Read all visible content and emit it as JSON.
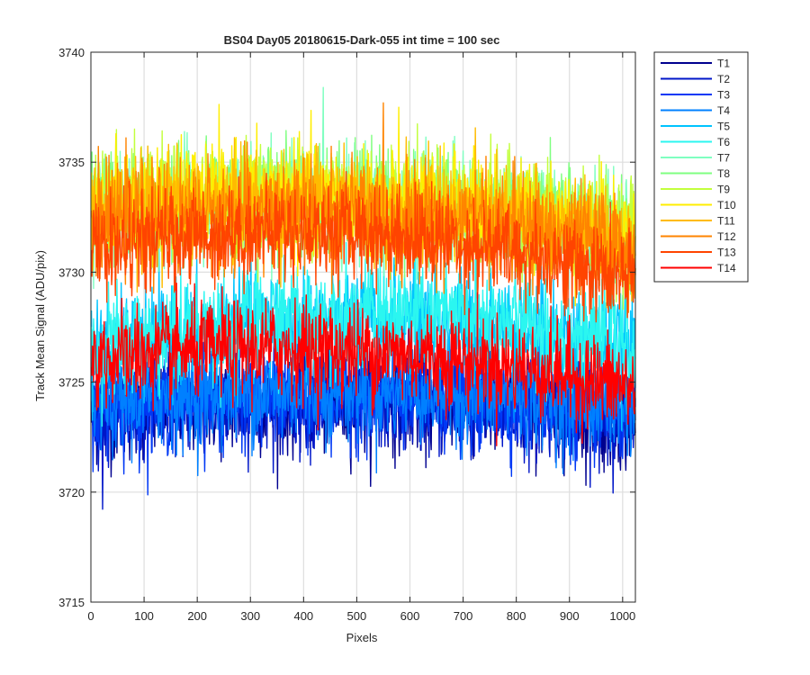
{
  "figure": {
    "background": "#ffffff",
    "axes_background": "#ffffff",
    "axis_color": "#262626",
    "grid_color": "#dedede"
  },
  "chart_data": {
    "type": "line",
    "title": "BS04 Day05 20180615-Dark-055 int time = 100 sec",
    "xlabel": "Pixels",
    "ylabel": "Track Mean Signal (ADU/pix)",
    "xlim": [
      0,
      1024
    ],
    "ylim": [
      3715,
      3740
    ],
    "xticks": [
      0,
      100,
      200,
      300,
      400,
      500,
      600,
      700,
      800,
      900,
      1000
    ],
    "yticks": [
      3715,
      3720,
      3725,
      3730,
      3735,
      3740
    ],
    "grid": true,
    "legend_position": "outside-top-right",
    "x_start": 1,
    "x_end": 1024,
    "series": [
      {
        "name": "T1",
        "color": "#00008f",
        "mean_start": 3723.5,
        "mean_mid": 3724.0,
        "mean_end": 3723.2,
        "spread": 1.1
      },
      {
        "name": "T2",
        "color": "#0016c8",
        "mean_start": 3723.6,
        "mean_mid": 3724.1,
        "mean_end": 3723.3,
        "spread": 1.1
      },
      {
        "name": "T3",
        "color": "#0038f5",
        "mean_start": 3723.8,
        "mean_mid": 3724.3,
        "mean_end": 3723.5,
        "spread": 1.1
      },
      {
        "name": "T4",
        "color": "#0080ff",
        "mean_start": 3724.0,
        "mean_mid": 3724.6,
        "mean_end": 3723.8,
        "spread": 1.1
      },
      {
        "name": "T5",
        "color": "#00c4ff",
        "mean_start": 3726.2,
        "mean_mid": 3727.8,
        "mean_end": 3726.3,
        "spread": 1.2
      },
      {
        "name": "T6",
        "color": "#2bf6f0",
        "mean_start": 3726.4,
        "mean_mid": 3728.1,
        "mean_end": 3726.6,
        "spread": 1.2
      },
      {
        "name": "T7",
        "color": "#7fffc0",
        "mean_start": 3732.6,
        "mean_mid": 3733.2,
        "mean_end": 3731.5,
        "spread": 1.2
      },
      {
        "name": "T8",
        "color": "#7fff80",
        "mean_start": 3732.8,
        "mean_mid": 3733.4,
        "mean_end": 3731.7,
        "spread": 1.2
      },
      {
        "name": "T9",
        "color": "#c2ff3d",
        "mean_start": 3732.9,
        "mean_mid": 3733.5,
        "mean_end": 3731.8,
        "spread": 1.2
      },
      {
        "name": "T10",
        "color": "#ffee00",
        "mean_start": 3732.9,
        "mean_mid": 3733.3,
        "mean_end": 3731.6,
        "spread": 1.2
      },
      {
        "name": "T11",
        "color": "#ffbb00",
        "mean_start": 3732.5,
        "mean_mid": 3733.0,
        "mean_end": 3731.4,
        "spread": 1.2
      },
      {
        "name": "T12",
        "color": "#ff8400",
        "mean_start": 3732.1,
        "mean_mid": 3732.6,
        "mean_end": 3731.0,
        "spread": 1.2
      },
      {
        "name": "T13",
        "color": "#ff4400",
        "mean_start": 3731.0,
        "mean_mid": 3731.8,
        "mean_end": 3729.5,
        "spread": 1.1
      },
      {
        "name": "T14",
        "color": "#ff0000",
        "mean_start": 3726.0,
        "mean_mid": 3726.4,
        "mean_end": 3724.7,
        "spread": 1.1
      }
    ]
  }
}
